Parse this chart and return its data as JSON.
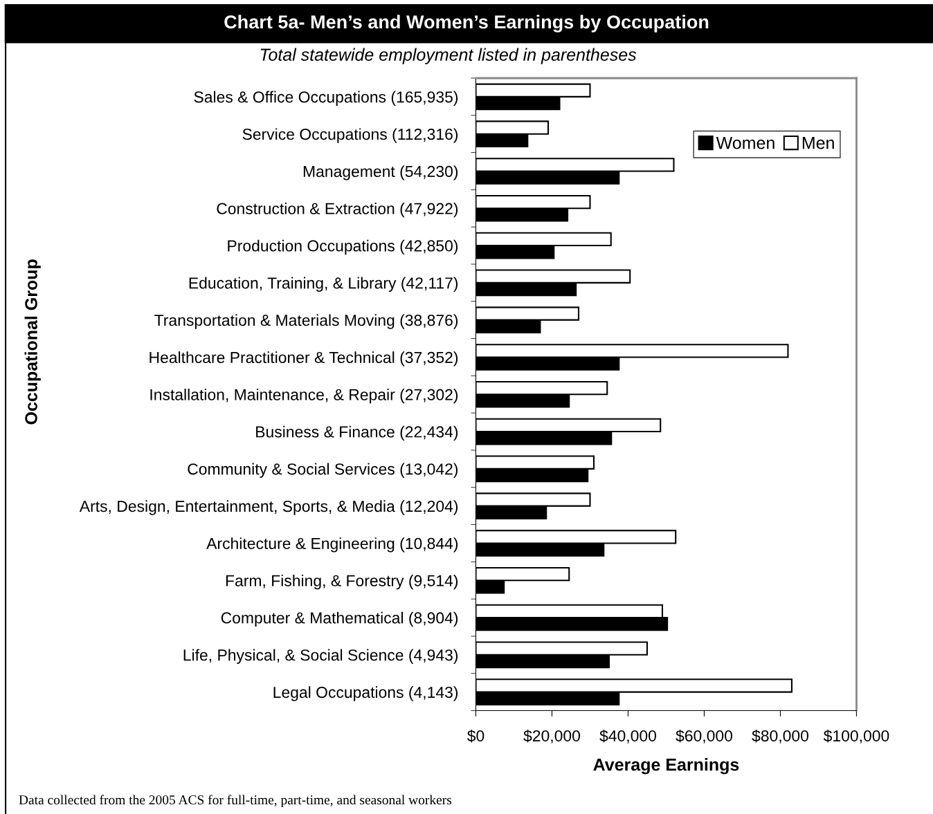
{
  "chart_data": {
    "type": "bar",
    "orientation": "horizontal",
    "title": "Chart 5a- Men’s and Women’s Earnings by Occupation",
    "subtitle": "Total statewide employment listed in parentheses",
    "xlabel": "Average Earnings",
    "ylabel": "Occupational Group",
    "categories": [
      "Sales & Office Occupations (165,935)",
      "Service Occupations (112,316)",
      "Management (54,230)",
      "Construction & Extraction (47,922)",
      "Production Occupations (42,850)",
      "Education, Training, & Library (42,117)",
      "Transportation & Materials Moving (38,876)",
      "Healthcare Practitioner & Technical (37,352)",
      "Installation, Maintenance, & Repair (27,302)",
      "Business & Finance (22,434)",
      "Community & Social Services (13,042)",
      "Arts, Design, Entertainment, Sports, & Media (12,204)",
      "Architecture & Engineering (10,844)",
      "Farm, Fishing, & Forestry (9,514)",
      "Computer & Mathematical (8,904)",
      "Life, Physical, & Social Science (4,943)",
      "Legal Occupations (4,143)"
    ],
    "series": [
      {
        "name": "Women",
        "color": "#000000",
        "values": [
          22000,
          13600,
          37600,
          24100,
          20500,
          26300,
          16900,
          37600,
          24500,
          35600,
          29400,
          18500,
          33600,
          7400,
          50300,
          35000,
          37600
        ]
      },
      {
        "name": "Men",
        "color": "#ffffff",
        "values": [
          30000,
          19000,
          52000,
          30000,
          35500,
          40500,
          27000,
          82000,
          34500,
          48500,
          31000,
          30000,
          52500,
          24500,
          49000,
          45000,
          83000
        ]
      }
    ],
    "xlim": [
      0,
      100000
    ],
    "xticks": [
      {
        "value": 0,
        "label": "$0"
      },
      {
        "value": 20000,
        "label": "$20,000"
      },
      {
        "value": 40000,
        "label": "$40,000"
      },
      {
        "value": 60000,
        "label": "$60,000"
      },
      {
        "value": 80000,
        "label": "$80,000"
      },
      {
        "value": 100000,
        "label": "$100,000"
      }
    ],
    "legend": "top right",
    "grid": false,
    "annotations": [
      "Data collected from the 2005 ACS for full-time, part-time, and seasonal workers"
    ]
  }
}
